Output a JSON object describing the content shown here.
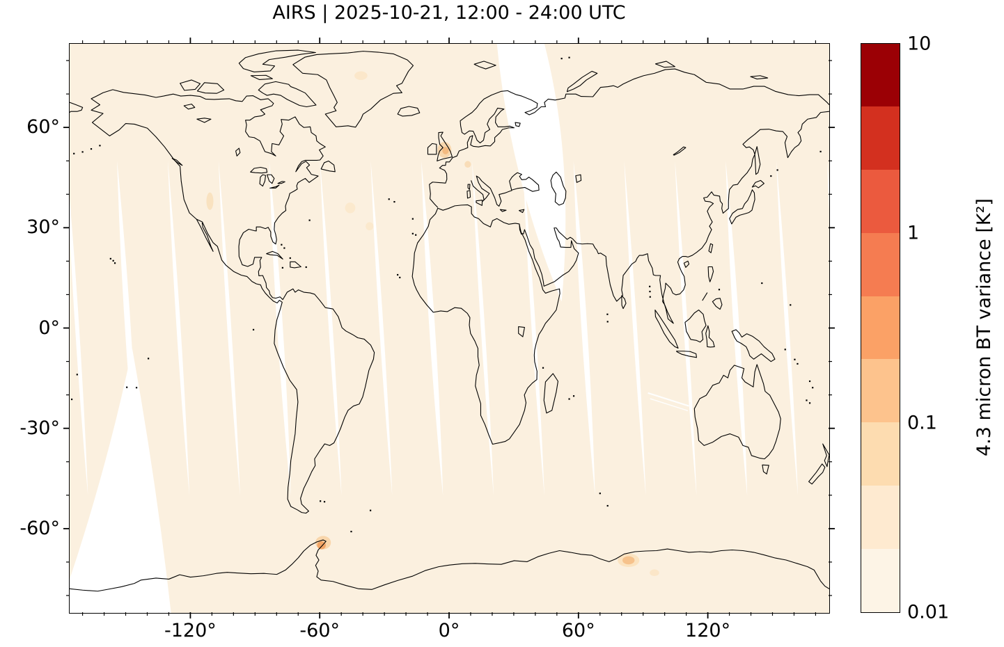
{
  "title": "AIRS | 2025-10-21, 12:00 - 24:00 UTC",
  "colors": {
    "figure_background": "#ffffff",
    "map_background_lowest_bin": "#fbf0df",
    "no_data": "#ffffff",
    "coastline": "#000000",
    "text": "#000000"
  },
  "chart_data": {
    "type": "heatmap",
    "title": "AIRS | 2025-10-21, 12:00 - 24:00 UTC",
    "x_axis": {
      "tick_labels": [
        "-120°",
        "-60°",
        "0°",
        "60°",
        "120°"
      ],
      "tick_values_deg": [
        -120,
        -60,
        0,
        60,
        120
      ],
      "minor_tick_step_deg": 10,
      "lon_range_deg": [
        -176,
        176
      ]
    },
    "y_axis": {
      "tick_labels": [
        "60°",
        "30°",
        "0°",
        "-30°",
        "-60°"
      ],
      "tick_values_deg": [
        60,
        30,
        0,
        -30,
        -60
      ],
      "minor_tick_step_deg": 10,
      "lat_range_deg": [
        -85,
        85
      ]
    },
    "colorbar": {
      "label": "4.3 micron BT variance [K²]",
      "scale": "log",
      "range": [
        0.01,
        10
      ],
      "tick_labels": [
        "10",
        "1",
        "0.1",
        "0.01"
      ],
      "tick_values": [
        10,
        1,
        0.1,
        0.01
      ],
      "n_segments": 9,
      "segment_bounds": [
        10,
        4.64,
        2.15,
        1,
        0.464,
        0.215,
        0.1,
        0.0464,
        0.0215,
        0.01
      ],
      "segment_colors_top_to_bottom": [
        "#9b0005",
        "#d3301f",
        "#eb5a3e",
        "#f57c51",
        "#fba166",
        "#fdc38d",
        "#fddcb0",
        "#feead0",
        "#fdf4e6"
      ]
    },
    "field_summary": {
      "background": "most of the globe in the lowest bin, about 0.01-0.02 K squared",
      "no_data_features": [
        "thin diagonal orbital-gap swaths between about 50N and 50S, spaced roughly every 23 degrees of longitude",
        "wide no-data wedge from the top edge near 22-44E tapering to about 52E at 10N",
        "wide no-data wedge in the southeast Pacific near 130-176W south of about 10S"
      ],
      "hotspots": [
        {
          "name": "Antarctic Peninsula",
          "lon": -59,
          "lat": -65,
          "value_K2": 0.3
        },
        {
          "name": "East Antarctica",
          "lon": 83,
          "lat": -69,
          "value_K2": 0.15
        },
        {
          "name": "British Isles",
          "lon": -2,
          "lat": 53,
          "value_K2": 0.2
        },
        {
          "name": "Central Europe",
          "lon": 8.5,
          "lat": 49,
          "value_K2": 0.05
        },
        {
          "name": "Western United States",
          "lon": -111,
          "lat": 38,
          "value_K2": 0.04
        },
        {
          "name": "North Atlantic",
          "lon": -46,
          "lat": 36,
          "value_K2": 0.03
        },
        {
          "name": "Greenland interior",
          "lon": -41,
          "lat": 75.5,
          "value_K2": 0.03
        },
        {
          "name": "East Antarctica secondary",
          "lon": 95,
          "lat": -73,
          "value_K2": 0.04
        }
      ]
    }
  }
}
